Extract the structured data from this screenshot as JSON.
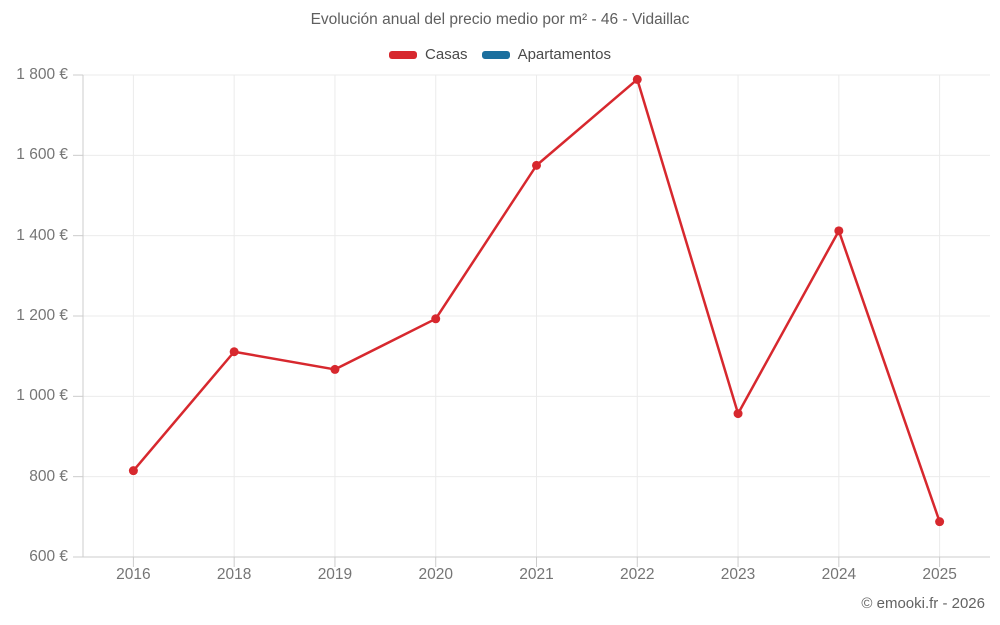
{
  "header": {
    "title": "Evolución anual del precio medio por m² - 46 - Vidaillac"
  },
  "legend": {
    "items": [
      {
        "label": "Casas",
        "color": "#d7282e"
      },
      {
        "label": "Apartamentos",
        "color": "#1b6f9e"
      }
    ]
  },
  "footer": {
    "credit": "© emooki.fr - 2026"
  },
  "colors": {
    "grid": "#ebebeb",
    "axis": "#cccccc",
    "tick": "#cccccc",
    "background": "#ffffff"
  },
  "chart_data": {
    "type": "line",
    "title": "Evolución anual del precio medio por m² - 46 - Vidaillac",
    "xlabel": "",
    "ylabel": "",
    "categories": [
      "2016",
      "2018",
      "2019",
      "2020",
      "2021",
      "2022",
      "2023",
      "2024",
      "2025"
    ],
    "series": [
      {
        "name": "Casas",
        "color": "#d7282e",
        "values": [
          815,
          1111,
          1067,
          1193,
          1575,
          1789,
          957,
          1412,
          688
        ]
      },
      {
        "name": "Apartamentos",
        "color": "#1b6f9e",
        "values": []
      }
    ],
    "ylim": [
      600,
      1800
    ],
    "y_ticks": [
      600,
      800,
      1000,
      1200,
      1400,
      1600,
      1800
    ],
    "y_tick_labels": [
      "600 €",
      "800 €",
      "1 000 €",
      "1 200 €",
      "1 400 €",
      "1 600 €",
      "1 800 €"
    ],
    "grid": true,
    "legend_position": "top",
    "unit": "€"
  }
}
